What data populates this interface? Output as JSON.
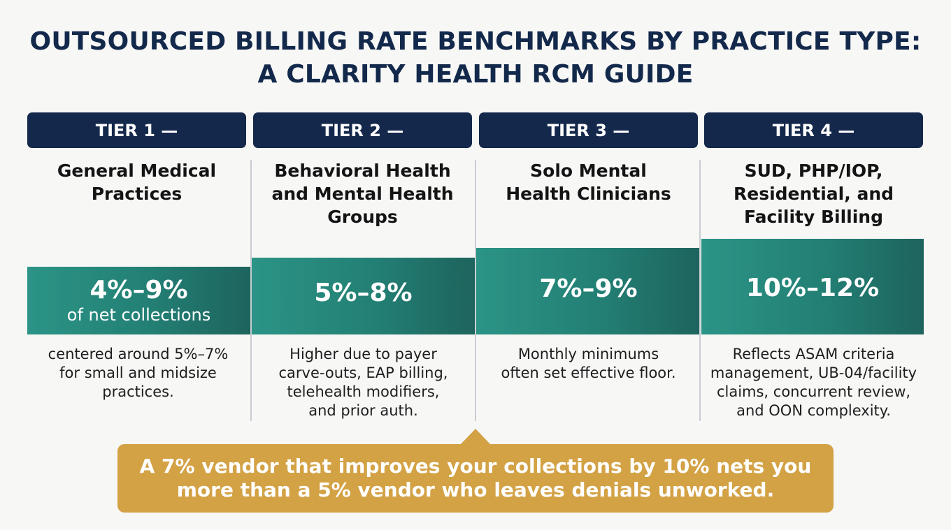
{
  "title": {
    "line1": "OUTSOURCED BILLING RATE BENCHMARKS BY PRACTICE TYPE:",
    "line2": "A CLARITY HEALTH RCM GUIDE"
  },
  "tiers": [
    {
      "label": "TIER 1 —",
      "name_lines": [
        "General Medical",
        "Practices"
      ],
      "rate": "4%–9%",
      "unit": "of net collections",
      "desc_lines": [
        "centered around 5%–7%",
        "for small and midsize",
        "practices."
      ]
    },
    {
      "label": "TIER 2 —",
      "name_lines": [
        "Behavioral Health",
        "and Mental Health",
        "Groups"
      ],
      "rate": "5%–8%",
      "unit": "",
      "desc_lines": [
        "Higher due to payer",
        "carve-outs, EAP billing,",
        "telehealth modifiers,",
        "and prior auth."
      ]
    },
    {
      "label": "TIER 3 —",
      "name_lines": [
        "Solo Mental",
        "Health Clinicians"
      ],
      "rate": "7%–9%",
      "unit": "",
      "desc_lines": [
        "Monthly minimums",
        "often set effective floor."
      ]
    },
    {
      "label": "TIER 4 —",
      "name_lines": [
        "SUD, PHP/IOP,",
        "Residential, and",
        "Facility Billing"
      ],
      "rate": "10%–12%",
      "unit": "",
      "desc_lines": [
        "Reflects ASAM criteria",
        "management, UB-04/facility",
        "claims, concurrent review,",
        "and OON complexity."
      ]
    }
  ],
  "callout": {
    "line1": "A 7% vendor that improves your collections by 10% nets you",
    "line2": "more than a 5% vendor who leaves denials unworked."
  },
  "colors": {
    "navy": "#14284b",
    "teal": "#237f74",
    "gold": "#d3a245"
  }
}
